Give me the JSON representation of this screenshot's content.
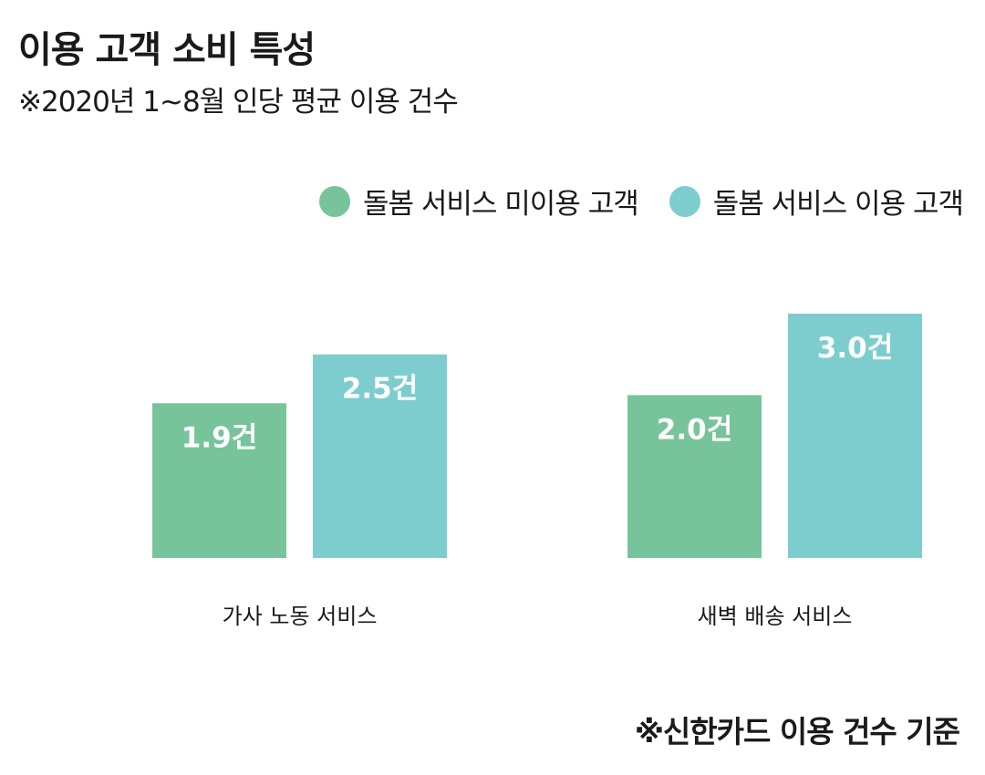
{
  "title": "이용 고객 소비 특성",
  "subtitle": "※2020년 1~8월 인당 평균 이용 건수",
  "footnote": "※신한카드 이용 건수 기준",
  "colors": {
    "series1": "#78c49a",
    "series2": "#7ecdce"
  },
  "chart_data": {
    "type": "bar",
    "categories": [
      "가사 노동 서비스",
      "새벽 배송 서비스"
    ],
    "series": [
      {
        "name": "돌봄 서비스 미이용 고객",
        "values": [
          1.9,
          2.0
        ],
        "labels": [
          "1.9건",
          "2.0건"
        ]
      },
      {
        "name": "돌봄 서비스 이용 고객",
        "values": [
          2.5,
          3.0
        ],
        "labels": [
          "2.5건",
          "3.0건"
        ]
      }
    ],
    "ylim": [
      0,
      3.0
    ],
    "legend": "top-right",
    "grid": false
  }
}
